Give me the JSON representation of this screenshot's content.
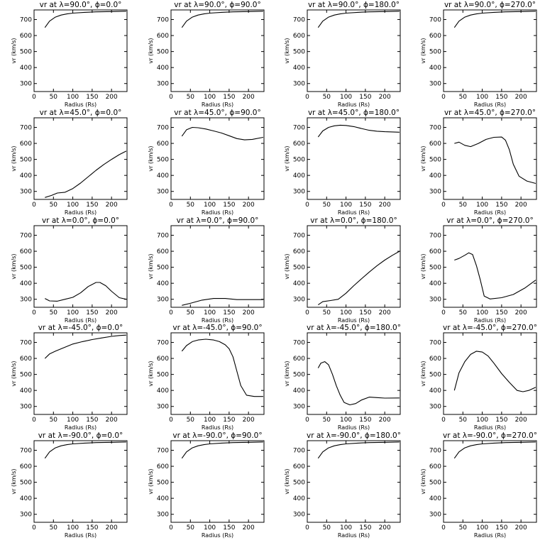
{
  "chart_data": {
    "type": "line",
    "grid": false,
    "xlim": [
      0,
      240
    ],
    "ylim": [
      250,
      760
    ],
    "xticks": [
      "0",
      "50",
      "100",
      "150",
      "200"
    ],
    "yticks": [
      "300",
      "400",
      "500",
      "600",
      "700"
    ],
    "xlabel": "Radius (Rs)",
    "ylabel": "vr (km/s)",
    "panels": [
      {
        "title": "vr at λ=90.0°, ϕ=0.0°",
        "x": [
          28,
          40,
          55,
          70,
          85,
          100,
          130,
          160,
          200,
          238
        ],
        "y": [
          650,
          690,
          715,
          728,
          735,
          740,
          745,
          748,
          750,
          752
        ]
      },
      {
        "title": "vr at λ=90.0°, ϕ=90.0°",
        "x": [
          28,
          40,
          55,
          70,
          85,
          100,
          130,
          160,
          200,
          238
        ],
        "y": [
          650,
          690,
          715,
          728,
          735,
          740,
          745,
          748,
          750,
          752
        ]
      },
      {
        "title": "vr at λ=90.0°, ϕ=180.0°",
        "x": [
          28,
          40,
          55,
          70,
          85,
          100,
          130,
          160,
          200,
          238
        ],
        "y": [
          650,
          690,
          715,
          728,
          735,
          740,
          745,
          748,
          750,
          752
        ]
      },
      {
        "title": "vr at λ=90.0°, ϕ=270.0°",
        "x": [
          28,
          40,
          55,
          70,
          85,
          100,
          130,
          160,
          200,
          238
        ],
        "y": [
          650,
          690,
          715,
          728,
          735,
          740,
          745,
          748,
          750,
          752
        ]
      },
      {
        "title": "vr at λ=45.0°, ϕ=0.0°",
        "x": [
          28,
          45,
          60,
          80,
          100,
          120,
          140,
          160,
          180,
          200,
          220,
          238
        ],
        "y": [
          262,
          275,
          290,
          295,
          318,
          352,
          392,
          432,
          468,
          500,
          530,
          552
        ]
      },
      {
        "title": "vr at λ=45.0°, ϕ=90.0°",
        "x": [
          28,
          40,
          55,
          70,
          90,
          110,
          130,
          150,
          170,
          190,
          210,
          238
        ],
        "y": [
          645,
          685,
          700,
          698,
          690,
          678,
          665,
          648,
          630,
          622,
          625,
          638
        ]
      },
      {
        "title": "vr at λ=45.0°, ϕ=180.0°",
        "x": [
          28,
          40,
          55,
          70,
          85,
          100,
          120,
          140,
          160,
          180,
          200,
          238
        ],
        "y": [
          640,
          678,
          700,
          710,
          714,
          712,
          705,
          693,
          682,
          676,
          673,
          670
        ]
      },
      {
        "title": "vr at λ=45.0°, ϕ=270.0°",
        "x": [
          28,
          40,
          55,
          70,
          90,
          110,
          130,
          150,
          160,
          170,
          180,
          195,
          215,
          238
        ],
        "y": [
          600,
          608,
          588,
          580,
          600,
          625,
          638,
          640,
          620,
          560,
          470,
          395,
          365,
          350
        ]
      },
      {
        "title": "vr at λ=0.0°, ϕ=0.0°",
        "x": [
          28,
          40,
          60,
          80,
          100,
          120,
          140,
          160,
          170,
          185,
          200,
          220,
          238
        ],
        "y": [
          305,
          290,
          288,
          300,
          312,
          340,
          380,
          405,
          405,
          385,
          350,
          310,
          300
        ]
      },
      {
        "title": "vr at λ=0.0°, ϕ=90.0°",
        "x": [
          28,
          50,
          80,
          110,
          140,
          170,
          200,
          238
        ],
        "y": [
          262,
          275,
          295,
          305,
          305,
          298,
          298,
          298
        ]
      },
      {
        "title": "vr at λ=0.0°, ϕ=180.0°",
        "x": [
          28,
          40,
          60,
          80,
          100,
          120,
          140,
          160,
          180,
          200,
          220,
          238
        ],
        "y": [
          265,
          285,
          292,
          300,
          338,
          385,
          428,
          470,
          510,
          545,
          575,
          600
        ]
      },
      {
        "title": "vr at λ=0.0°, ϕ=270.0°",
        "x": [
          28,
          40,
          55,
          65,
          75,
          85,
          95,
          105,
          120,
          150,
          180,
          210,
          238
        ],
        "y": [
          545,
          555,
          575,
          590,
          580,
          510,
          420,
          320,
          302,
          310,
          330,
          370,
          420
        ]
      },
      {
        "title": "vr at λ=-45.0°, ϕ=0.0°",
        "x": [
          28,
          40,
          55,
          75,
          100,
          125,
          150,
          175,
          200,
          220,
          238
        ],
        "y": [
          600,
          628,
          645,
          665,
          690,
          705,
          718,
          728,
          738,
          743,
          746
        ]
      },
      {
        "title": "vr at λ=-45.0°, ϕ=90.0°",
        "x": [
          28,
          40,
          55,
          70,
          90,
          110,
          125,
          140,
          150,
          160,
          170,
          180,
          195,
          215,
          238
        ],
        "y": [
          645,
          680,
          705,
          715,
          720,
          715,
          705,
          685,
          660,
          610,
          520,
          430,
          370,
          362,
          362
        ]
      },
      {
        "title": "vr at λ=-45.0°, ϕ=180.0°",
        "x": [
          28,
          35,
          45,
          55,
          65,
          75,
          85,
          95,
          110,
          125,
          140,
          160,
          180,
          200,
          238
        ],
        "y": [
          540,
          570,
          580,
          560,
          500,
          430,
          370,
          325,
          310,
          318,
          340,
          358,
          355,
          352,
          353
        ]
      },
      {
        "title": "vr at λ=-45.0°, ϕ=270.0°",
        "x": [
          28,
          40,
          55,
          70,
          85,
          100,
          115,
          130,
          150,
          170,
          190,
          205,
          220,
          238
        ],
        "y": [
          400,
          510,
          580,
          625,
          645,
          640,
          615,
          570,
          505,
          450,
          400,
          392,
          400,
          420
        ]
      },
      {
        "title": "vr at λ=-90.0°, ϕ=0.0°",
        "x": [
          28,
          40,
          55,
          70,
          85,
          100,
          130,
          160,
          200,
          238
        ],
        "y": [
          650,
          690,
          715,
          728,
          735,
          740,
          745,
          748,
          750,
          752
        ]
      },
      {
        "title": "vr at λ=-90.0°, ϕ=90.0°",
        "x": [
          28,
          40,
          55,
          70,
          85,
          100,
          130,
          160,
          200,
          238
        ],
        "y": [
          650,
          690,
          715,
          728,
          735,
          740,
          745,
          748,
          750,
          752
        ]
      },
      {
        "title": "vr at λ=-90.0°, ϕ=180.0°",
        "x": [
          28,
          40,
          55,
          70,
          85,
          100,
          130,
          160,
          200,
          238
        ],
        "y": [
          650,
          690,
          715,
          728,
          735,
          740,
          745,
          748,
          750,
          752
        ]
      },
      {
        "title": "vr at λ=-90.0°, ϕ=270.0°",
        "x": [
          28,
          40,
          55,
          70,
          85,
          100,
          130,
          160,
          200,
          238
        ],
        "y": [
          650,
          690,
          715,
          728,
          735,
          740,
          745,
          748,
          750,
          752
        ]
      }
    ]
  }
}
